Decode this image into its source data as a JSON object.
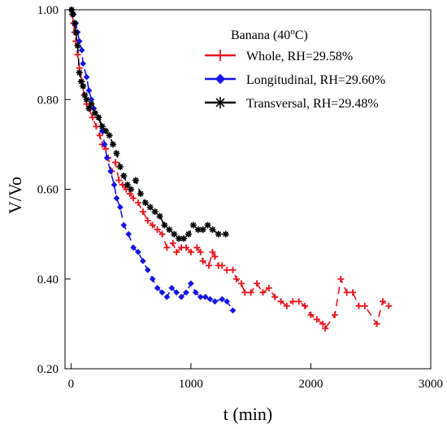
{
  "chart_data": {
    "type": "line",
    "legend_title_main": "Banana (40",
    "legend_title_sup": "o",
    "legend_title_end": "C)",
    "xlabel": "t (min)",
    "ylabel": "V/Vo",
    "xlim": [
      -50,
      3000
    ],
    "ylim": [
      0.2,
      1.0
    ],
    "xticks": [
      0,
      1000,
      2000,
      3000
    ],
    "yticks": [
      1.0,
      0.8,
      0.6,
      0.4,
      0.2
    ],
    "xtick_labels": [
      "0",
      "1000",
      "2000",
      "3000"
    ],
    "ytick_labels": [
      "1.00",
      "0.80",
      "0.60",
      "0.40",
      "0.20"
    ],
    "grid": false,
    "legend_position": "top-right",
    "series": [
      {
        "name": "Whole, RH=29.58%",
        "color": "#e8141c",
        "marker": "plus",
        "points": [
          [
            10,
            0.99
          ],
          [
            20,
            0.97
          ],
          [
            30,
            0.95
          ],
          [
            40,
            0.93
          ],
          [
            55,
            0.9
          ],
          [
            70,
            0.87
          ],
          [
            90,
            0.84
          ],
          [
            110,
            0.81
          ],
          [
            130,
            0.79
          ],
          [
            150,
            0.78
          ],
          [
            180,
            0.76
          ],
          [
            210,
            0.74
          ],
          [
            240,
            0.72
          ],
          [
            260,
            0.7
          ],
          [
            290,
            0.69
          ],
          [
            310,
            0.67
          ],
          [
            340,
            0.64
          ],
          [
            370,
            0.66
          ],
          [
            400,
            0.62
          ],
          [
            430,
            0.61
          ],
          [
            460,
            0.6
          ],
          [
            490,
            0.59
          ],
          [
            520,
            0.58
          ],
          [
            560,
            0.57
          ],
          [
            600,
            0.55
          ],
          [
            640,
            0.53
          ],
          [
            680,
            0.52
          ],
          [
            720,
            0.51
          ],
          [
            760,
            0.5
          ],
          [
            800,
            0.47
          ],
          [
            850,
            0.48
          ],
          [
            880,
            0.46
          ],
          [
            920,
            0.47
          ],
          [
            960,
            0.47
          ],
          [
            1000,
            0.46
          ],
          [
            1050,
            0.47
          ],
          [
            1080,
            0.46
          ],
          [
            1100,
            0.44
          ],
          [
            1150,
            0.43
          ],
          [
            1180,
            0.46
          ],
          [
            1200,
            0.45
          ],
          [
            1230,
            0.43
          ],
          [
            1260,
            0.43
          ],
          [
            1300,
            0.42
          ],
          [
            1350,
            0.42
          ],
          [
            1380,
            0.4
          ],
          [
            1420,
            0.39
          ],
          [
            1450,
            0.37
          ],
          [
            1500,
            0.37
          ],
          [
            1550,
            0.39
          ],
          [
            1600,
            0.37
          ],
          [
            1650,
            0.38
          ],
          [
            1700,
            0.36
          ],
          [
            1750,
            0.35
          ],
          [
            1800,
            0.34
          ],
          [
            1850,
            0.35
          ],
          [
            1900,
            0.35
          ],
          [
            1950,
            0.34
          ],
          [
            2000,
            0.32
          ],
          [
            2050,
            0.31
          ],
          [
            2100,
            0.3
          ],
          [
            2120,
            0.29
          ],
          [
            2200,
            0.32
          ],
          [
            2250,
            0.4
          ],
          [
            2300,
            0.37
          ],
          [
            2350,
            0.37
          ],
          [
            2400,
            0.34
          ],
          [
            2450,
            0.34
          ],
          [
            2550,
            0.3
          ],
          [
            2600,
            0.35
          ],
          [
            2650,
            0.34
          ]
        ]
      },
      {
        "name": "Longitudinal, RH=29.60%",
        "color": "#1414e6",
        "marker": "diamond",
        "points": [
          [
            5,
            1.0
          ],
          [
            20,
            0.99
          ],
          [
            40,
            0.97
          ],
          [
            55,
            0.95
          ],
          [
            70,
            0.93
          ],
          [
            90,
            0.91
          ],
          [
            100,
            0.88
          ],
          [
            130,
            0.85
          ],
          [
            150,
            0.82
          ],
          [
            170,
            0.8
          ],
          [
            190,
            0.78
          ],
          [
            230,
            0.76
          ],
          [
            260,
            0.73
          ],
          [
            280,
            0.7
          ],
          [
            300,
            0.67
          ],
          [
            330,
            0.64
          ],
          [
            360,
            0.61
          ],
          [
            380,
            0.58
          ],
          [
            410,
            0.56
          ],
          [
            440,
            0.52
          ],
          [
            480,
            0.5
          ],
          [
            520,
            0.47
          ],
          [
            560,
            0.46
          ],
          [
            600,
            0.44
          ],
          [
            640,
            0.42
          ],
          [
            680,
            0.4
          ],
          [
            720,
            0.38
          ],
          [
            760,
            0.37
          ],
          [
            800,
            0.36
          ],
          [
            840,
            0.38
          ],
          [
            880,
            0.37
          ],
          [
            920,
            0.36
          ],
          [
            960,
            0.37
          ],
          [
            1000,
            0.39
          ],
          [
            1040,
            0.37
          ],
          [
            1080,
            0.36
          ],
          [
            1120,
            0.36
          ],
          [
            1160,
            0.355
          ],
          [
            1200,
            0.35
          ],
          [
            1260,
            0.355
          ],
          [
            1300,
            0.35
          ],
          [
            1350,
            0.33
          ]
        ]
      },
      {
        "name": "Transversal, RH=29.48%",
        "color": "#000000",
        "marker": "star",
        "points": [
          [
            5,
            1.0
          ],
          [
            15,
            0.99
          ],
          [
            30,
            0.97
          ],
          [
            40,
            0.95
          ],
          [
            55,
            0.92
          ],
          [
            70,
            0.86
          ],
          [
            85,
            0.84
          ],
          [
            100,
            0.83
          ],
          [
            115,
            0.81
          ],
          [
            130,
            0.8
          ],
          [
            150,
            0.78
          ],
          [
            170,
            0.79
          ],
          [
            200,
            0.77
          ],
          [
            230,
            0.76
          ],
          [
            260,
            0.74
          ],
          [
            290,
            0.73
          ],
          [
            320,
            0.72
          ],
          [
            350,
            0.7
          ],
          [
            380,
            0.68
          ],
          [
            410,
            0.65
          ],
          [
            440,
            0.63
          ],
          [
            470,
            0.61
          ],
          [
            500,
            0.6
          ],
          [
            540,
            0.62
          ],
          [
            580,
            0.59
          ],
          [
            620,
            0.57
          ],
          [
            660,
            0.56
          ],
          [
            700,
            0.55
          ],
          [
            740,
            0.54
          ],
          [
            780,
            0.52
          ],
          [
            820,
            0.51
          ],
          [
            860,
            0.5
          ],
          [
            900,
            0.49
          ],
          [
            940,
            0.49
          ],
          [
            980,
            0.5
          ],
          [
            1020,
            0.52
          ],
          [
            1060,
            0.51
          ],
          [
            1100,
            0.51
          ],
          [
            1140,
            0.52
          ],
          [
            1180,
            0.51
          ],
          [
            1230,
            0.5
          ],
          [
            1290,
            0.5
          ]
        ]
      }
    ]
  }
}
